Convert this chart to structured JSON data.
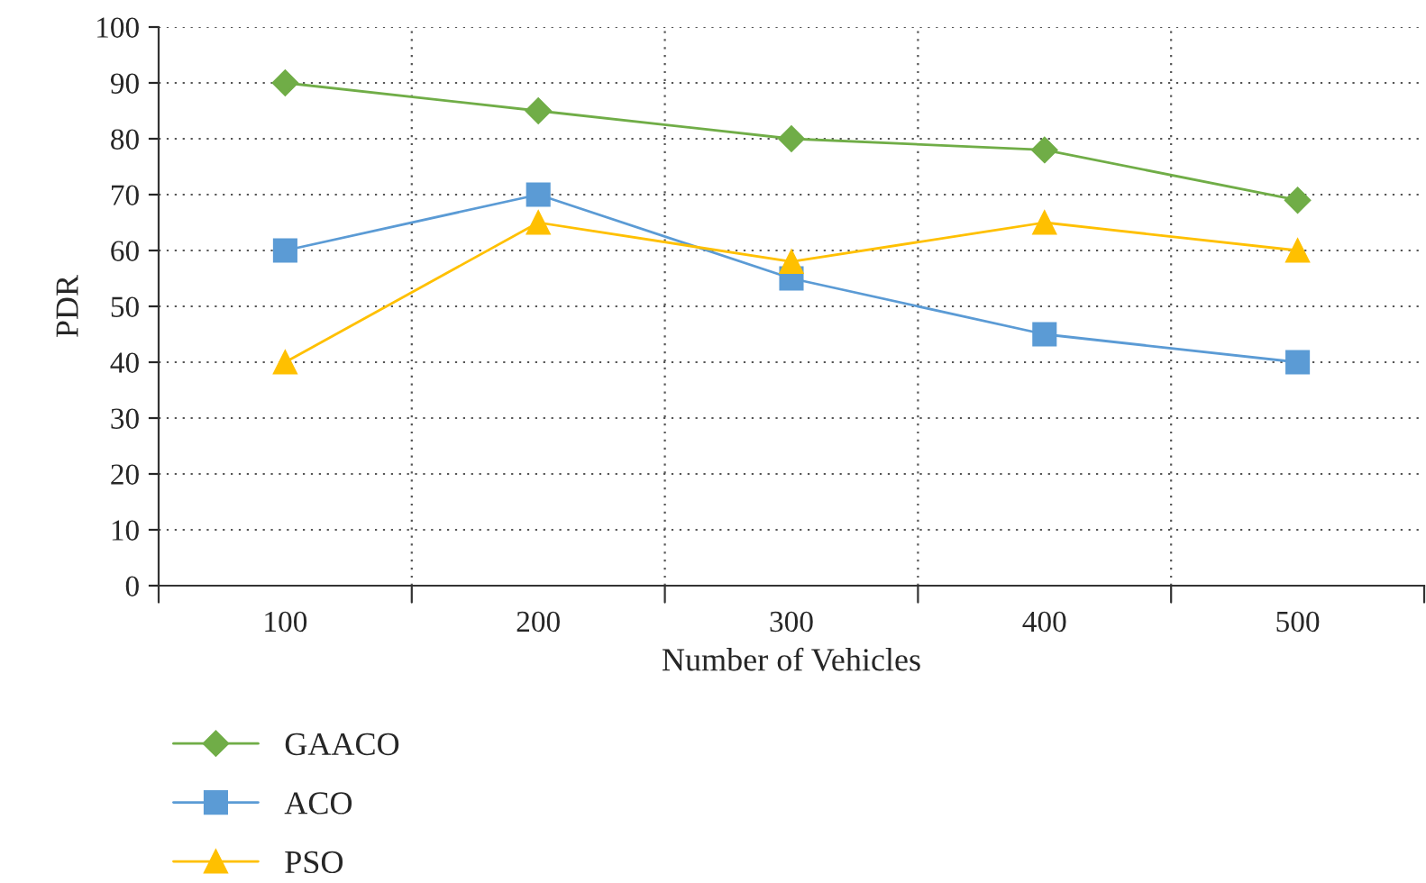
{
  "chart_data": {
    "type": "line",
    "xlabel": "Number of Vehicles",
    "ylabel": "PDR",
    "categories": [
      "100",
      "200",
      "300",
      "400",
      "500"
    ],
    "series": [
      {
        "name": "GAACO",
        "color": "#70ad47",
        "marker": "diamond",
        "values": [
          90,
          85,
          80,
          78,
          69
        ]
      },
      {
        "name": "ACO",
        "color": "#5b9bd5",
        "marker": "square",
        "values": [
          60,
          70,
          55,
          45,
          40
        ]
      },
      {
        "name": "PSO",
        "color": "#ffc000",
        "marker": "triangle",
        "values": [
          40,
          65,
          58,
          65,
          60
        ]
      }
    ],
    "ylim": [
      0,
      100
    ],
    "yticks": [
      0,
      10,
      20,
      30,
      40,
      50,
      60,
      70,
      80,
      90,
      100
    ],
    "grid": true,
    "legend": "bottom left",
    "line_style": "solid"
  }
}
